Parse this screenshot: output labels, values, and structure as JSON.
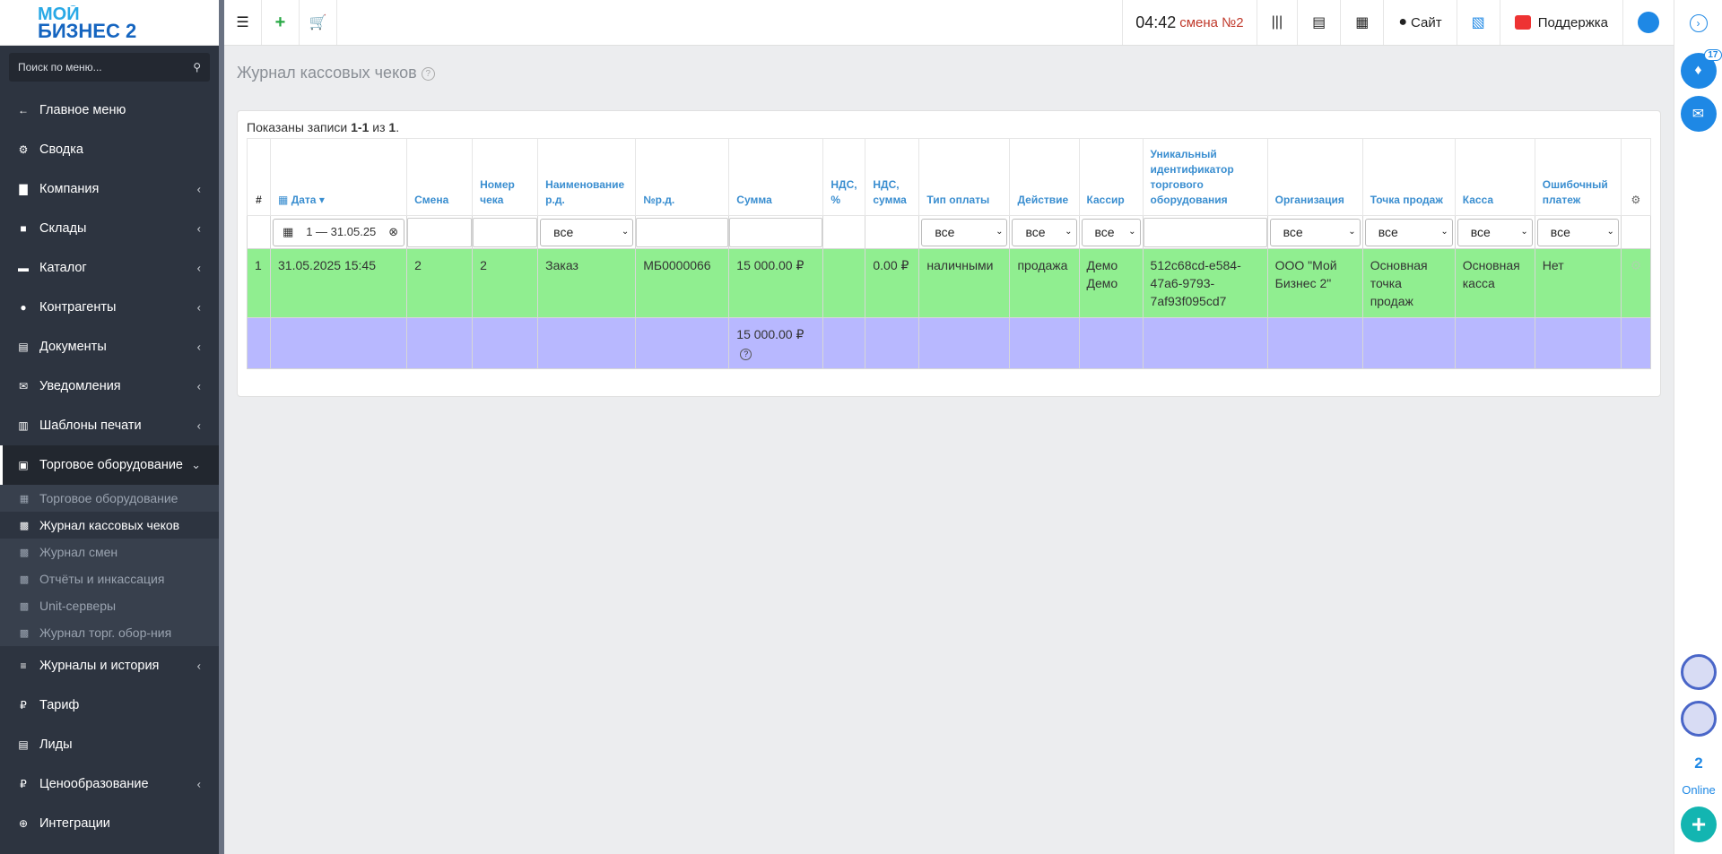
{
  "app": {
    "logo_line1": "МОЙ",
    "logo_line2": "БИЗНЕС 2"
  },
  "search": {
    "placeholder": "Поиск по меню..."
  },
  "sidebar": {
    "items": [
      {
        "icon": "arrow-left-icon",
        "label": "Главное меню",
        "chevron": false
      },
      {
        "icon": "gear-icon",
        "label": "Сводка",
        "chevron": false
      },
      {
        "icon": "chart-icon",
        "label": "Компания",
        "chevron": true
      },
      {
        "icon": "truck-icon",
        "label": "Склады",
        "chevron": true
      },
      {
        "icon": "folder-icon",
        "label": "Каталог",
        "chevron": true
      },
      {
        "icon": "users-icon",
        "label": "Контрагенты",
        "chevron": true
      },
      {
        "icon": "document-icon",
        "label": "Документы",
        "chevron": true
      },
      {
        "icon": "chat-icon",
        "label": "Уведомления",
        "chevron": true
      },
      {
        "icon": "print-template-icon",
        "label": "Шаблоны печати",
        "chevron": true
      },
      {
        "icon": "register-icon",
        "label": "Торговое оборудование",
        "chevron": true
      }
    ],
    "submenu": [
      {
        "icon": "calculator-icon",
        "label": "Торговое оборудование"
      },
      {
        "icon": "money-icon",
        "label": "Журнал кассовых чеков"
      },
      {
        "icon": "money-icon",
        "label": "Журнал смен"
      },
      {
        "icon": "money-icon",
        "label": "Отчёты и инкассация"
      },
      {
        "icon": "money-icon",
        "label": "Unit-серверы"
      },
      {
        "icon": "money-icon",
        "label": "Журнал торг. обор-ния"
      }
    ],
    "items2": [
      {
        "icon": "list-icon",
        "label": "Журналы и история",
        "chevron": true
      },
      {
        "icon": "ruble-icon",
        "label": "Тариф",
        "chevron": false
      },
      {
        "icon": "lead-icon",
        "label": "Лиды",
        "chevron": false
      },
      {
        "icon": "ruble-icon",
        "label": "Ценообразование",
        "chevron": true
      },
      {
        "icon": "link-icon",
        "label": "Интеграции",
        "chevron": false
      }
    ]
  },
  "topbar": {
    "time": "04:42",
    "shift": "смена №2",
    "site": "Сайт",
    "support": "Поддержка"
  },
  "rightbar": {
    "notifications": "17",
    "online_count": "2",
    "online_label": "Online"
  },
  "page": {
    "title": "Журнал кассовых чеков",
    "summary_prefix": "Показаны записи ",
    "summary_range": "1-1",
    "summary_of": " из ",
    "summary_total": "1",
    "summary_end": "."
  },
  "table": {
    "headers": {
      "num": "#",
      "date": "Дата",
      "shift": "Смена",
      "check": "Номер чека",
      "name": "Наименование р.д.",
      "nrd": "№р.д.",
      "sum": "Сумма",
      "vat_pct": "НДС, %",
      "vat_sum": "НДС, сумма",
      "pay": "Тип оплаты",
      "action": "Действие",
      "cashier": "Кассир",
      "uid": "Уникальный идентификатор торгового оборудования",
      "org": "Организация",
      "point": "Точка продаж",
      "kassa": "Касса",
      "err": "Ошибочный платеж"
    },
    "filters": {
      "date": "1 — 31.05.25",
      "all": "все"
    },
    "rows": [
      {
        "num": "1",
        "date": "31.05.2025 15:45",
        "shift": "2",
        "check": "2",
        "name": "Заказ",
        "nrd": "МБ0000066",
        "sum": "15 000.00 ₽",
        "vat_pct": "",
        "vat_sum": "0.00 ₽",
        "pay": "наличными",
        "action": "продажа",
        "cashier": "Демо Демо",
        "uid": "512c68cd-e584-47a6-9793-7af93f095cd7",
        "org": "ООО \"Мой Бизнес 2\"",
        "point": "Основная точка продаж",
        "kassa": "Основная касса",
        "err": "Нет"
      }
    ],
    "total": {
      "sum": "15 000.00 ₽"
    }
  },
  "colors": {
    "row_ok": "#90ee90",
    "row_total": "#b8b8ff",
    "accent": "#1e88e5"
  }
}
